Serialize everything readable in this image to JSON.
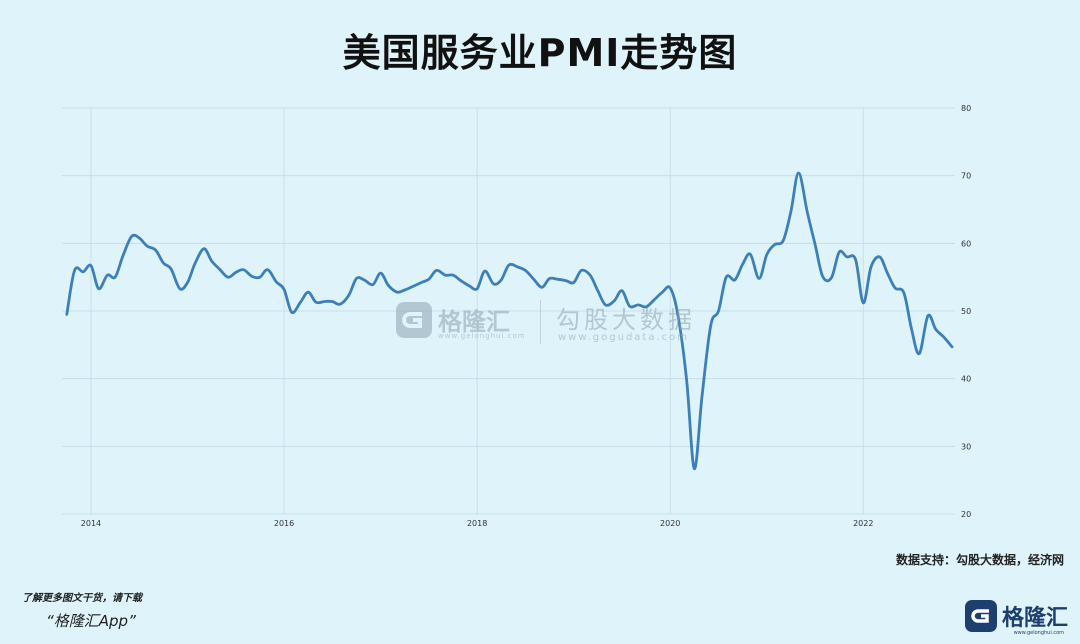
{
  "title": "美国服务业PMI走势图",
  "source": "数据支持：勾股大数据，经济网",
  "promo": {
    "line1": "了解更多图文干货，请下载",
    "line2": "“格隆汇App”"
  },
  "logo": {
    "text": "格隆汇",
    "sub": "www.gelonghui.com"
  },
  "watermark": {
    "left_text": "格隆汇",
    "left_sub": "www.gelonghui.com",
    "right_text": "勾股大数据",
    "right_sub": "www.gogudata.com"
  },
  "colors": {
    "line": "#3d7fb8",
    "background": "#dff3fb",
    "grid": "#c3dbe6"
  },
  "icons": [
    "gelonghui-logo-icon"
  ],
  "chart_data": {
    "type": "line",
    "title": "美国服务业PMI走势图",
    "xlabel": "",
    "ylabel": "",
    "x_ticks": [
      "2014",
      "2016",
      "2018",
      "2020",
      "2022"
    ],
    "y_ticks": [
      20,
      30,
      40,
      50,
      60,
      70,
      80
    ],
    "ylim": [
      20,
      80
    ],
    "xlim": [
      2013.7,
      2022.95
    ],
    "grid": true,
    "y_axis_side": "right",
    "series": [
      {
        "points": [
          [
            2013.75,
            49.5
          ],
          [
            2013.83,
            56.0
          ],
          [
            2013.92,
            55.8
          ],
          [
            2014.0,
            56.7
          ],
          [
            2014.08,
            53.3
          ],
          [
            2014.17,
            55.3
          ],
          [
            2014.25,
            55.0
          ],
          [
            2014.33,
            58.1
          ],
          [
            2014.42,
            61.0
          ],
          [
            2014.5,
            60.8
          ],
          [
            2014.58,
            59.6
          ],
          [
            2014.67,
            59.0
          ],
          [
            2014.75,
            57.1
          ],
          [
            2014.83,
            56.2
          ],
          [
            2014.92,
            53.3
          ],
          [
            2015.0,
            54.2
          ],
          [
            2015.08,
            57.1
          ],
          [
            2015.17,
            59.2
          ],
          [
            2015.25,
            57.4
          ],
          [
            2015.33,
            56.2
          ],
          [
            2015.42,
            55.0
          ],
          [
            2015.5,
            55.7
          ],
          [
            2015.58,
            56.1
          ],
          [
            2015.67,
            55.1
          ],
          [
            2015.75,
            55.0
          ],
          [
            2015.83,
            56.1
          ],
          [
            2015.92,
            54.3
          ],
          [
            2016.0,
            53.2
          ],
          [
            2016.08,
            49.8
          ],
          [
            2016.17,
            51.3
          ],
          [
            2016.25,
            52.8
          ],
          [
            2016.33,
            51.3
          ],
          [
            2016.42,
            51.4
          ],
          [
            2016.5,
            51.4
          ],
          [
            2016.58,
            51.0
          ],
          [
            2016.67,
            52.3
          ],
          [
            2016.75,
            54.8
          ],
          [
            2016.83,
            54.6
          ],
          [
            2016.92,
            53.9
          ],
          [
            2017.0,
            55.6
          ],
          [
            2017.08,
            53.8
          ],
          [
            2017.17,
            52.8
          ],
          [
            2017.25,
            53.1
          ],
          [
            2017.33,
            53.6
          ],
          [
            2017.42,
            54.2
          ],
          [
            2017.5,
            54.7
          ],
          [
            2017.58,
            56.0
          ],
          [
            2017.67,
            55.3
          ],
          [
            2017.75,
            55.3
          ],
          [
            2017.83,
            54.5
          ],
          [
            2017.92,
            53.7
          ],
          [
            2018.0,
            53.3
          ],
          [
            2018.08,
            55.9
          ],
          [
            2018.17,
            54.0
          ],
          [
            2018.25,
            54.6
          ],
          [
            2018.33,
            56.8
          ],
          [
            2018.42,
            56.5
          ],
          [
            2018.5,
            56.0
          ],
          [
            2018.58,
            54.8
          ],
          [
            2018.67,
            53.5
          ],
          [
            2018.75,
            54.8
          ],
          [
            2018.83,
            54.7
          ],
          [
            2018.92,
            54.5
          ],
          [
            2019.0,
            54.2
          ],
          [
            2019.08,
            56.0
          ],
          [
            2019.17,
            55.3
          ],
          [
            2019.25,
            53.0
          ],
          [
            2019.33,
            50.9
          ],
          [
            2019.42,
            51.5
          ],
          [
            2019.5,
            53.0
          ],
          [
            2019.58,
            50.7
          ],
          [
            2019.67,
            50.9
          ],
          [
            2019.75,
            50.6
          ],
          [
            2019.83,
            51.6
          ],
          [
            2019.92,
            52.8
          ],
          [
            2020.0,
            53.4
          ],
          [
            2020.08,
            49.4
          ],
          [
            2020.17,
            39.8
          ],
          [
            2020.25,
            26.7
          ],
          [
            2020.33,
            37.5
          ],
          [
            2020.42,
            47.9
          ],
          [
            2020.5,
            50.0
          ],
          [
            2020.58,
            55.0
          ],
          [
            2020.67,
            54.6
          ],
          [
            2020.75,
            56.9
          ],
          [
            2020.83,
            58.4
          ],
          [
            2020.92,
            54.8
          ],
          [
            2021.0,
            58.3
          ],
          [
            2021.08,
            59.8
          ],
          [
            2021.17,
            60.4
          ],
          [
            2021.25,
            64.7
          ],
          [
            2021.33,
            70.4
          ],
          [
            2021.42,
            64.6
          ],
          [
            2021.5,
            59.9
          ],
          [
            2021.58,
            55.1
          ],
          [
            2021.67,
            54.9
          ],
          [
            2021.75,
            58.7
          ],
          [
            2021.83,
            58.0
          ],
          [
            2021.92,
            57.6
          ],
          [
            2022.0,
            51.2
          ],
          [
            2022.08,
            56.5
          ],
          [
            2022.17,
            58.0
          ],
          [
            2022.25,
            55.6
          ],
          [
            2022.33,
            53.4
          ],
          [
            2022.42,
            52.7
          ],
          [
            2022.5,
            47.3
          ],
          [
            2022.58,
            43.7
          ],
          [
            2022.67,
            49.3
          ],
          [
            2022.75,
            47.3
          ],
          [
            2022.83,
            46.2
          ],
          [
            2022.92,
            44.7
          ]
        ]
      }
    ]
  }
}
